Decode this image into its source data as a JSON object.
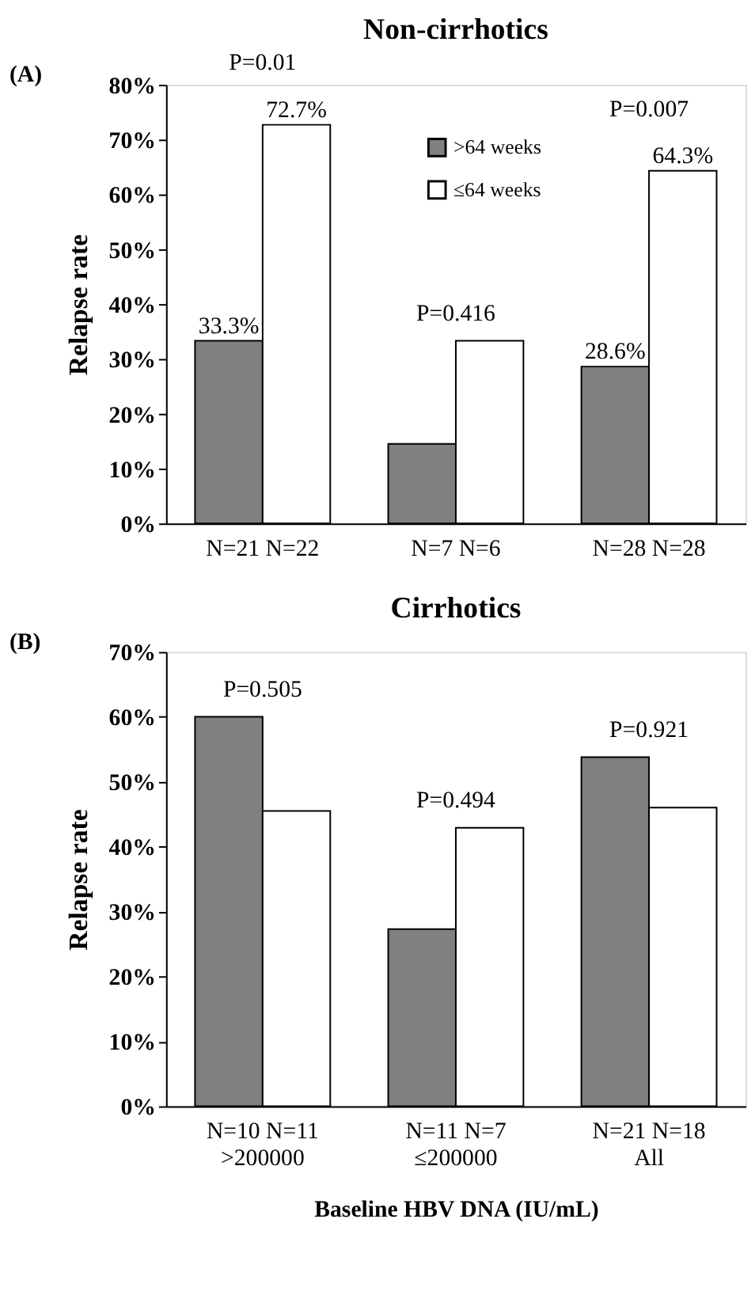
{
  "chart_data": [
    {
      "type": "bar",
      "title": "Non-cirrhotics",
      "ylabel": "Relapse rate",
      "categories": [
        "N=21 N=22",
        "N=7   N=6",
        "N=28 N=28"
      ],
      "series": [
        {
          "name": ">64 weeks",
          "color": "#808080",
          "values": [
            33.3,
            14.5,
            28.6
          ],
          "value_labels": [
            "33.3%",
            null,
            "28.6%"
          ]
        },
        {
          "name": "≤64 weeks",
          "color": "#ffffff",
          "values": [
            72.7,
            33.3,
            64.3
          ],
          "value_labels": [
            "72.7%",
            null,
            "64.3%"
          ]
        }
      ],
      "ylim": [
        0,
        80
      ],
      "yticks": [
        {
          "value": 0,
          "label": "0%"
        },
        {
          "value": 10,
          "label": "10%"
        },
        {
          "value": 20,
          "label": "20%"
        },
        {
          "value": 30,
          "label": "30%"
        },
        {
          "value": 40,
          "label": "40%"
        },
        {
          "value": 50,
          "label": "50%"
        },
        {
          "value": 60,
          "label": "60%"
        },
        {
          "value": 70,
          "label": "70%"
        },
        {
          "value": 80,
          "label": "80%"
        }
      ],
      "legend": "top",
      "grid": false,
      "annotations": [
        "(A)",
        "P=0.01",
        "P=0.416",
        "P=0.007"
      ]
    },
    {
      "type": "bar",
      "title": "Cirrhotics",
      "ylabel": "Relapse rate",
      "xlabel": "Baseline HBV DNA (IU/mL)",
      "categories": [
        "N=10 N=11\n>200000",
        "N=11 N=7\n≤200000",
        "N=21 N=18\nAll"
      ],
      "series": [
        {
          "color": "#808080",
          "values": [
            60,
            27.3,
            53.8
          ]
        },
        {
          "color": "#ffffff",
          "values": [
            45.5,
            42.9,
            46
          ]
        }
      ],
      "ylim": [
        0,
        70
      ],
      "yticks": [
        {
          "value": 0,
          "label": "0%"
        },
        {
          "value": 10,
          "label": "10%"
        },
        {
          "value": 20,
          "label": "20%"
        },
        {
          "value": 30,
          "label": "30%"
        },
        {
          "value": 40,
          "label": "40%"
        },
        {
          "value": 50,
          "label": "50%"
        },
        {
          "value": 60,
          "label": "60%"
        },
        {
          "value": 70,
          "label": "70%"
        }
      ],
      "legend": false,
      "grid": false,
      "annotations": [
        "(B)",
        "P=0.505",
        "P=0.494",
        "P=0.921"
      ]
    }
  ]
}
